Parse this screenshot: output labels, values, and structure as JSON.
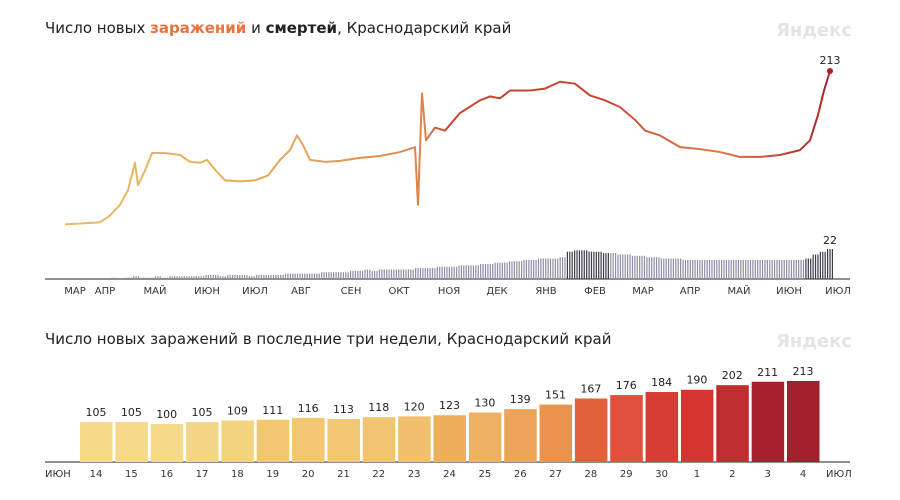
{
  "watermark": "Яндекс",
  "chart_data": [
    {
      "type": "line",
      "title": {
        "prefix": "Число новых ",
        "infections": "заражений",
        "mid": " и ",
        "deaths": "смертей",
        "suffix": ", Краснодарский край"
      },
      "x_ticks": [
        "МАР",
        "АПР",
        "МАЙ",
        "ИЮН",
        "ИЮЛ",
        "АВГ",
        "СЕН",
        "ОКТ",
        "НОЯ",
        "ДЕК",
        "ЯНВ",
        "ФЕВ",
        "МАР",
        "АПР",
        "МАЙ",
        "ИЮН",
        "ИЮЛ"
      ],
      "infections": [
        56,
        58,
        65,
        76,
        91,
        119,
        96,
        111,
        129,
        129,
        127,
        120,
        119,
        122,
        112,
        101,
        100,
        101,
        106,
        122,
        132,
        147,
        137,
        122,
        120,
        121,
        124,
        126,
        130,
        135,
        76,
        190,
        142,
        155,
        152,
        170,
        183,
        187,
        185,
        193,
        193,
        195,
        202,
        200,
        188,
        183,
        176,
        163,
        152,
        147,
        135,
        133,
        130,
        125,
        125,
        127,
        132,
        142,
        168,
        193,
        213
      ],
      "deaths": [
        0,
        0,
        1,
        0,
        1,
        2,
        1,
        1,
        2,
        1,
        2,
        2,
        2,
        2,
        2,
        3,
        3,
        2,
        3,
        3,
        3,
        2,
        3,
        3,
        3,
        3,
        4,
        4,
        4,
        4,
        4,
        5,
        5,
        5,
        5,
        6,
        6,
        7,
        6,
        7,
        7,
        7,
        7,
        7,
        8,
        8,
        8,
        9,
        9,
        9,
        10,
        10,
        10,
        11,
        11,
        12,
        12,
        13,
        13,
        14,
        14,
        15,
        15,
        15,
        16,
        20,
        21,
        21,
        20,
        20,
        19,
        19,
        18,
        18,
        17,
        17,
        16,
        16,
        15,
        15,
        15,
        14,
        14,
        14,
        14,
        14,
        14,
        14,
        14,
        14,
        14,
        14,
        14,
        14,
        14,
        14,
        14,
        14,
        15,
        18,
        20,
        22
      ],
      "last_infections_label": "213",
      "last_deaths_label": "22",
      "ylim": [
        0,
        213
      ]
    },
    {
      "type": "bar",
      "title": "Число новых заражений в последние три недели, Краснодарский край",
      "start_label": "ИЮН",
      "end_label": "ИЮЛ",
      "categories": [
        "14",
        "15",
        "16",
        "17",
        "18",
        "19",
        "20",
        "21",
        "22",
        "23",
        "24",
        "25",
        "26",
        "27",
        "28",
        "29",
        "30",
        "1",
        "2",
        "3",
        "4"
      ],
      "weekend": [
        false,
        false,
        false,
        false,
        false,
        true,
        true,
        false,
        false,
        false,
        false,
        false,
        true,
        true,
        false,
        false,
        false,
        false,
        false,
        true,
        true
      ],
      "values": [
        105,
        105,
        100,
        105,
        109,
        111,
        116,
        113,
        118,
        120,
        123,
        130,
        139,
        151,
        167,
        176,
        184,
        190,
        202,
        211,
        213
      ],
      "colors": [
        "#f6da8a",
        "#f6da8a",
        "#f6da8a",
        "#f5d684",
        "#f5d27e",
        "#f3c672",
        "#f3c672",
        "#f3c672",
        "#f2c470",
        "#f2c06c",
        "#efb05e",
        "#eeb062",
        "#eca458",
        "#ea934c",
        "#e5613c",
        "#e0503a",
        "#d83c34",
        "#d43530",
        "#bf2e2e",
        "#a81f2d",
        "#a21f2c"
      ],
      "weekend_color": "#e0443a"
    }
  ]
}
